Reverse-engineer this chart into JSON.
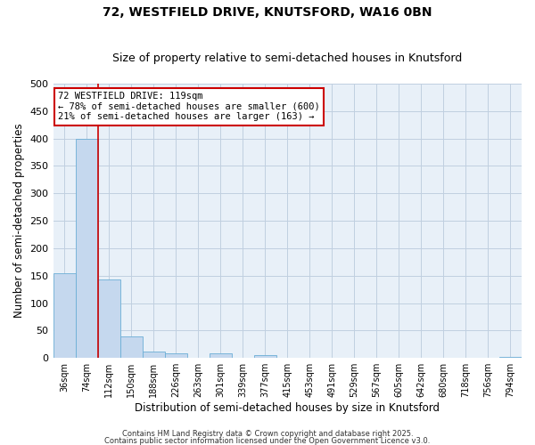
{
  "title": "72, WESTFIELD DRIVE, KNUTSFORD, WA16 0BN",
  "subtitle": "Size of property relative to semi-detached houses in Knutsford",
  "xlabel": "Distribution of semi-detached houses by size in Knutsford",
  "ylabel": "Number of semi-detached properties",
  "bin_labels": [
    "36sqm",
    "74sqm",
    "112sqm",
    "150sqm",
    "188sqm",
    "226sqm",
    "263sqm",
    "301sqm",
    "339sqm",
    "377sqm",
    "415sqm",
    "453sqm",
    "491sqm",
    "529sqm",
    "567sqm",
    "605sqm",
    "642sqm",
    "680sqm",
    "718sqm",
    "756sqm",
    "794sqm"
  ],
  "bar_values": [
    155,
    400,
    143,
    40,
    12,
    8,
    0,
    8,
    0,
    6,
    0,
    0,
    0,
    0,
    0,
    0,
    0,
    0,
    0,
    0,
    2
  ],
  "bar_color": "#c5d8ee",
  "bar_edge_color": "#6baed6",
  "ylim": [
    0,
    500
  ],
  "yticks": [
    0,
    50,
    100,
    150,
    200,
    250,
    300,
    350,
    400,
    450,
    500
  ],
  "vline_x_idx": 2,
  "vline_color": "#cc0000",
  "annotation_title": "72 WESTFIELD DRIVE: 119sqm",
  "annotation_line1": "← 78% of semi-detached houses are smaller (600)",
  "annotation_line2": "21% of semi-detached houses are larger (163) →",
  "annotation_box_color": "#ffffff",
  "annotation_box_edge_color": "#cc0000",
  "footer1": "Contains HM Land Registry data © Crown copyright and database right 2025.",
  "footer2": "Contains public sector information licensed under the Open Government Licence v3.0.",
  "bg_color": "#ffffff",
  "plot_bg_color": "#e8f0f8",
  "grid_color": "#c0cfe0",
  "title_fontsize": 10,
  "subtitle_fontsize": 9
}
